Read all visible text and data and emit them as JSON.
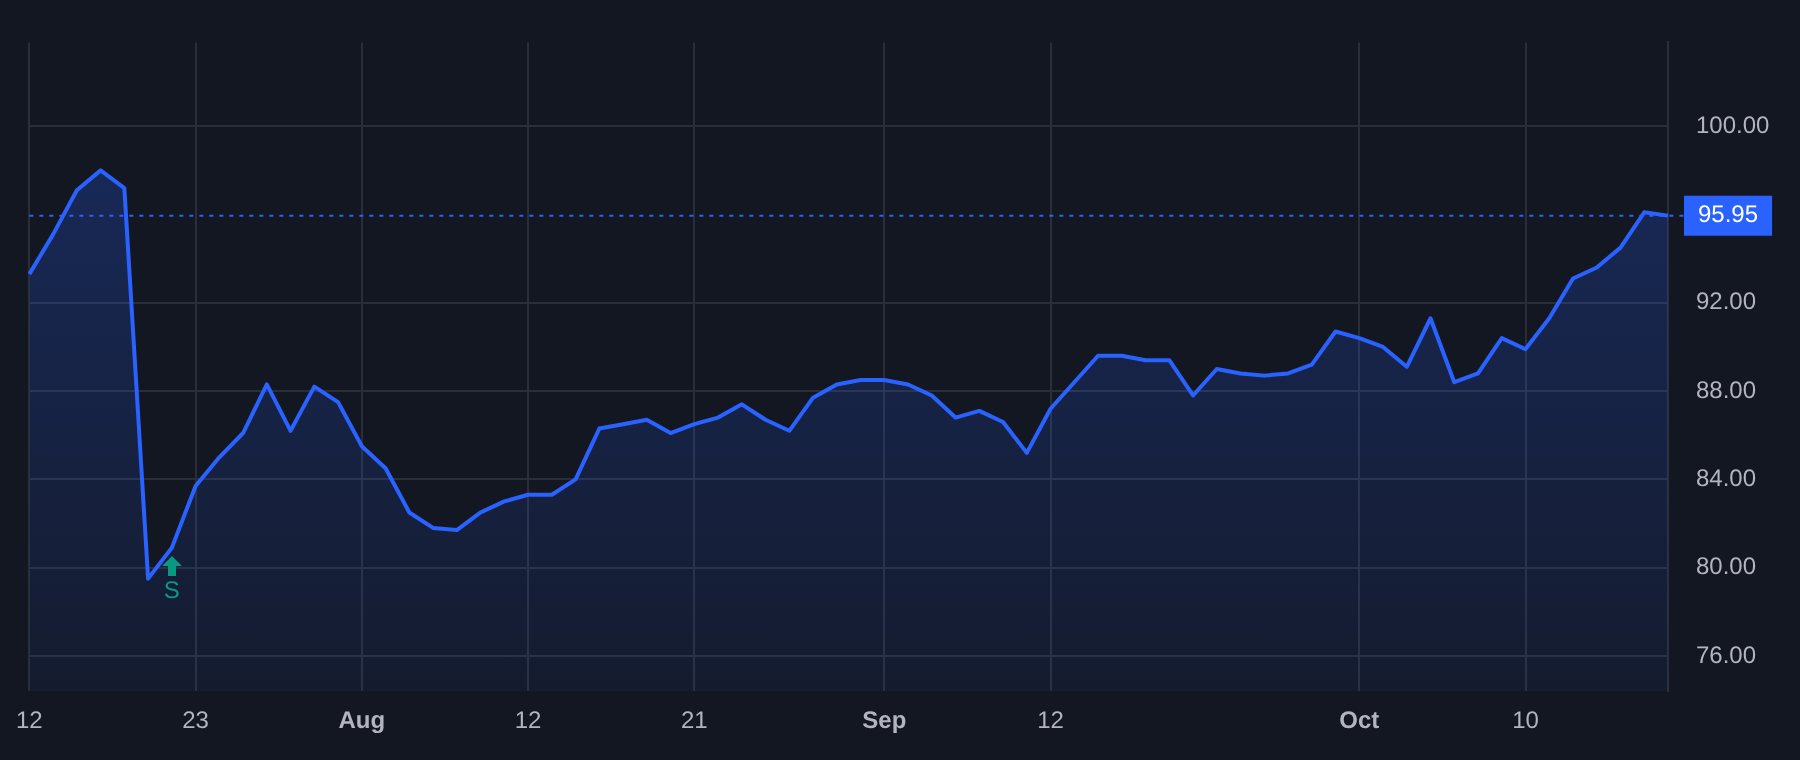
{
  "chart_data": {
    "type": "area",
    "categories": [
      "12",
      null,
      null,
      null,
      null,
      null,
      null,
      "23",
      null,
      null,
      null,
      null,
      null,
      null,
      "Aug",
      null,
      null,
      null,
      null,
      null,
      null,
      "12",
      null,
      null,
      null,
      null,
      null,
      null,
      "21",
      null,
      null,
      null,
      null,
      null,
      null,
      null,
      "Sep",
      null,
      null,
      null,
      null,
      null,
      null,
      "12",
      null,
      null,
      null,
      null,
      null,
      null,
      null,
      null,
      null,
      null,
      null,
      null,
      "Oct",
      null,
      null,
      null,
      null,
      null,
      null,
      "10",
      null,
      null,
      null,
      null,
      null,
      null
    ],
    "series": [
      {
        "color": "#2962ff",
        "values": [
          93.3,
          95.1,
          97.1,
          98.0,
          97.2,
          79.5,
          80.9,
          83.7,
          85.0,
          86.1,
          88.3,
          86.2,
          88.2,
          87.5,
          85.5,
          84.5,
          82.5,
          81.8,
          81.7,
          82.5,
          83.0,
          83.3,
          83.3,
          84.0,
          86.3,
          86.5,
          86.7,
          86.1,
          86.5,
          86.8,
          87.4,
          86.7,
          86.2,
          87.7,
          88.3,
          88.5,
          88.5,
          88.3,
          87.8,
          86.8,
          87.1,
          86.6,
          85.2,
          87.2,
          88.4,
          89.6,
          89.6,
          89.4,
          89.4,
          87.8,
          89.0,
          88.8,
          88.7,
          88.8,
          89.2,
          90.7,
          90.4,
          90.0,
          89.1,
          91.3,
          88.4,
          88.8,
          90.4,
          89.9,
          91.3,
          93.1,
          93.6,
          94.5,
          96.1,
          95.95
        ]
      }
    ],
    "ylim": [
      74.4,
      103.8
    ],
    "yticks": [
      {
        "value": 76,
        "label": "76.00"
      },
      {
        "value": 80,
        "label": "80.00"
      },
      {
        "value": 84,
        "label": "84.00"
      },
      {
        "value": 88,
        "label": "88.00"
      },
      {
        "value": 92,
        "label": "92.00"
      },
      {
        "value": 100,
        "label": "100.00"
      }
    ],
    "grid": true,
    "ref_lines": [
      {
        "axis": "y",
        "value": 95.95,
        "label": "95.95",
        "color": "#2962ff",
        "line_style": "dotted"
      }
    ],
    "annotations": [
      {
        "text": "S",
        "y": 80.9
      }
    ]
  }
}
